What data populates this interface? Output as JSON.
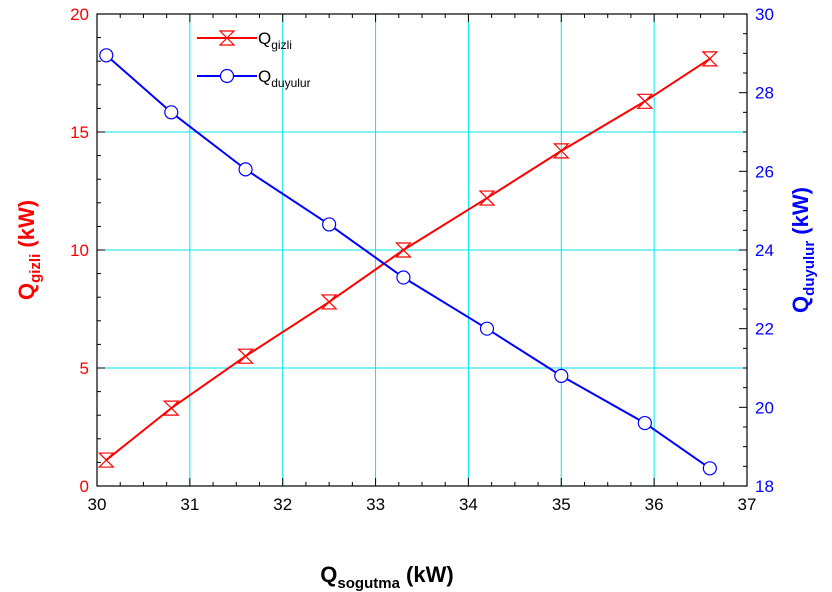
{
  "chart_data": {
    "type": "line",
    "colors": {
      "left_series": "#ff0000",
      "right_series": "#0000ff",
      "grid": "#00e5ee",
      "axis": "#000000",
      "left_axis_text": "#ff0000",
      "right_axis_text": "#0000ff"
    },
    "grid": true,
    "legend_position": "top-left",
    "xlabel": {
      "main": "Q",
      "sub": "sogutma",
      "unit": " (kW)"
    },
    "ylabel_left": {
      "main": "Q",
      "sub": "gizli",
      "unit": " (kW)"
    },
    "ylabel_right": {
      "main": "Q",
      "sub": "duyulur",
      "unit": " (kW)"
    },
    "xlim": [
      30,
      37
    ],
    "ylim_left": [
      0,
      20
    ],
    "ylim_right": [
      18,
      30
    ],
    "xticks": [
      "30",
      "31",
      "32",
      "33",
      "34",
      "35",
      "36",
      "37"
    ],
    "yticks_left": [
      "0",
      "5",
      "10",
      "15",
      "20"
    ],
    "yticks_right": [
      "18",
      "20",
      "22",
      "24",
      "26",
      "28",
      "30"
    ],
    "series": [
      {
        "name": {
          "main": "Q",
          "sub": "gizli"
        },
        "axis": "left",
        "marker": "hourglass",
        "x": [
          30.1,
          30.8,
          31.6,
          32.5,
          33.3,
          34.2,
          35.0,
          35.9,
          36.6
        ],
        "y": [
          1.1,
          3.3,
          5.5,
          7.8,
          10.0,
          12.2,
          14.2,
          16.3,
          18.1
        ]
      },
      {
        "name": {
          "main": "Q",
          "sub": "duyulur"
        },
        "axis": "right",
        "marker": "circle",
        "x": [
          30.1,
          30.8,
          31.6,
          32.5,
          33.3,
          34.2,
          35.0,
          35.9,
          36.6
        ],
        "y": [
          28.95,
          27.5,
          26.05,
          24.65,
          23.3,
          22.0,
          20.8,
          19.6,
          18.45
        ]
      }
    ]
  }
}
